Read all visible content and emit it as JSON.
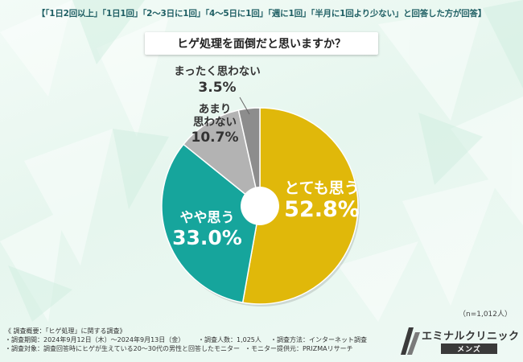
{
  "header": {
    "criteria": "【「1日2回以上」「1日1回」「2〜3日に1回」「4〜5日に1回」「週に1回」「半月に1回より少ない」と回答した方が回答】",
    "question": "ヒゲ処理を面倒だと思いますか？"
  },
  "colors": {
    "background": "#e8f7ef",
    "slice_1": "#e0b80a",
    "slice_2": "#16a59c",
    "slice_3": "#b3b3b3",
    "slice_4": "#8d8d8d",
    "center_hole": "#ffffff",
    "text_dark": "#333333"
  },
  "chart_data": {
    "type": "pie",
    "title": "ヒゲ処理を面倒だと思いますか？",
    "start_angle_deg": 0,
    "direction": "clockwise",
    "donut_hole": true,
    "slices": [
      {
        "label": "とても思う",
        "value": 52.8,
        "display": "52.8%",
        "color": "#e0b80a"
      },
      {
        "label": "やや思う",
        "value": 33.0,
        "display": "33.0%",
        "color": "#16a59c"
      },
      {
        "label": "あまり\n思わない",
        "label_lines": [
          "あまり",
          "思わない"
        ],
        "value": 10.7,
        "display": "10.7%",
        "color": "#b3b3b3"
      },
      {
        "label": "まったく思わない",
        "value": 3.5,
        "display": "3.5%",
        "color": "#8d8d8d"
      }
    ],
    "sample_size": "（n=1,012人）"
  },
  "notes": {
    "overview": "《 調査概要：「ヒゲ処理」に関する調査》",
    "period": "・調査期間：2024年9月12日（木）〜2024年9月13日（金）",
    "people": "・調査人数：1,025人",
    "method": "・調査方法：インターネット調査",
    "target": "・調査対象：調査回答時にヒゲが生えている20〜30代の男性と回答したモニター",
    "provider": "・モニター提供元：PRIZMAリサーチ"
  },
  "logo": {
    "name": "エミナルクリニック",
    "sub": "メンズ"
  }
}
